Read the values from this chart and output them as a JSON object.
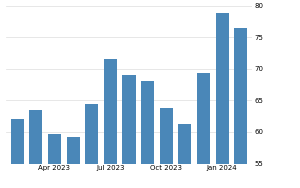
{
  "values": [
    62.0,
    63.5,
    59.7,
    59.2,
    64.4,
    71.6,
    69.0,
    68.1,
    63.8,
    61.3,
    69.4,
    78.8,
    76.5
  ],
  "bar_color": "#4a87b8",
  "ylim": [
    55,
    80
  ],
  "yticks": [
    55,
    60,
    65,
    70,
    75,
    80
  ],
  "xtick_indices": [
    2,
    5,
    8,
    11
  ],
  "xtick_labels": [
    "Apr 2023",
    "Jul 2023",
    "Oct 2023",
    "Jan 2024"
  ],
  "background_color": "#ffffff",
  "grid_color": "#dddddd",
  "bar_width": 0.7,
  "ytick_fontsize": 5.0,
  "xtick_fontsize": 5.0
}
